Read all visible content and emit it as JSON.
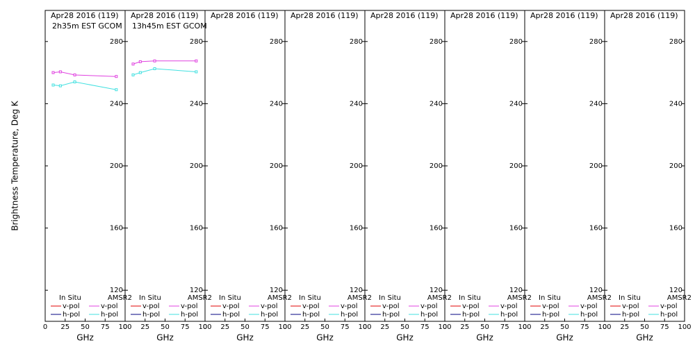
{
  "chart_data": [
    {
      "type": "line",
      "title": "Apr28 2016 (119)",
      "subtitle": "2h35m EST GCOM",
      "ylabel": "Brightness Temperature, Deg K",
      "xlabel": "GHz",
      "xlim": [
        0,
        100
      ],
      "xticks": [
        0,
        25,
        50,
        75,
        100
      ],
      "ylim": [
        100,
        300
      ],
      "yticks": [
        120,
        160,
        200,
        240,
        280
      ],
      "x": [
        10,
        19,
        37,
        89
      ],
      "groups": [
        {
          "name": "In Situ",
          "series": [
            {
              "name": "v-pol",
              "color": "#e00000",
              "values": [
                null,
                null,
                null,
                null
              ]
            },
            {
              "name": "h-pol",
              "color": "#000080",
              "values": [
                null,
                null,
                null,
                null
              ]
            }
          ]
        },
        {
          "name": "AMSR2",
          "series": [
            {
              "name": "v-pol",
              "color": "#e040e0",
              "values": [
                260,
                260.5,
                258.5,
                257.5
              ]
            },
            {
              "name": "h-pol",
              "color": "#40e0e0",
              "values": [
                252,
                251.5,
                254,
                249
              ]
            }
          ]
        }
      ]
    },
    {
      "type": "line",
      "title": "Apr28 2016 (119)",
      "subtitle": "13h45m EST GCOM",
      "xlabel": "GHz",
      "xlim": [
        0,
        100
      ],
      "xticks": [
        0,
        25,
        50,
        75,
        100
      ],
      "ylim": [
        100,
        300
      ],
      "yticks": [
        120,
        160,
        200,
        240,
        280
      ],
      "x": [
        10,
        19,
        37,
        89
      ],
      "groups": [
        {
          "name": "In Situ",
          "series": [
            {
              "name": "v-pol",
              "color": "#e00000",
              "values": [
                null,
                null,
                null,
                null
              ]
            },
            {
              "name": "h-pol",
              "color": "#000080",
              "values": [
                null,
                null,
                null,
                null
              ]
            }
          ]
        },
        {
          "name": "AMSR2",
          "series": [
            {
              "name": "v-pol",
              "color": "#e040e0",
              "values": [
                265.5,
                267,
                267.5,
                267.5
              ]
            },
            {
              "name": "h-pol",
              "color": "#40e0e0",
              "values": [
                258.5,
                260,
                262.5,
                260.5
              ]
            }
          ]
        }
      ]
    },
    {
      "type": "line",
      "title": "Apr28 2016 (119)",
      "xlabel": "GHz",
      "xlim": [
        0,
        100
      ],
      "xticks": [
        0,
        25,
        50,
        75,
        100
      ],
      "ylim": [
        100,
        300
      ],
      "yticks": [
        120,
        160,
        200,
        240,
        280
      ],
      "x": [],
      "groups": [
        {
          "name": "In Situ",
          "series": [
            {
              "name": "v-pol",
              "color": "#e00000",
              "values": []
            },
            {
              "name": "h-pol",
              "color": "#000080",
              "values": []
            }
          ]
        },
        {
          "name": "AMSR2",
          "series": [
            {
              "name": "v-pol",
              "color": "#e040e0",
              "values": []
            },
            {
              "name": "h-pol",
              "color": "#40e0e0",
              "values": []
            }
          ]
        }
      ]
    },
    {
      "type": "line",
      "title": "Apr28 2016 (119)",
      "xlabel": "GHz",
      "xlim": [
        0,
        100
      ],
      "xticks": [
        0,
        25,
        50,
        75,
        100
      ],
      "ylim": [
        100,
        300
      ],
      "yticks": [
        120,
        160,
        200,
        240,
        280
      ],
      "x": [],
      "groups": [
        {
          "name": "In Situ",
          "series": [
            {
              "name": "v-pol",
              "color": "#e00000",
              "values": []
            },
            {
              "name": "h-pol",
              "color": "#000080",
              "values": []
            }
          ]
        },
        {
          "name": "AMSR2",
          "series": [
            {
              "name": "v-pol",
              "color": "#e040e0",
              "values": []
            },
            {
              "name": "h-pol",
              "color": "#40e0e0",
              "values": []
            }
          ]
        }
      ]
    },
    {
      "type": "line",
      "title": "Apr28 2016 (119)",
      "xlabel": "GHz",
      "xlim": [
        0,
        100
      ],
      "xticks": [
        0,
        25,
        50,
        75,
        100
      ],
      "ylim": [
        100,
        300
      ],
      "yticks": [
        120,
        160,
        200,
        240,
        280
      ],
      "x": [],
      "groups": [
        {
          "name": "In Situ",
          "series": [
            {
              "name": "v-pol",
              "color": "#e00000",
              "values": []
            },
            {
              "name": "h-pol",
              "color": "#000080",
              "values": []
            }
          ]
        },
        {
          "name": "AMSR2",
          "series": [
            {
              "name": "v-pol",
              "color": "#e040e0",
              "values": []
            },
            {
              "name": "h-pol",
              "color": "#40e0e0",
              "values": []
            }
          ]
        }
      ]
    },
    {
      "type": "line",
      "title": "Apr28 2016 (119)",
      "xlabel": "GHz",
      "xlim": [
        0,
        100
      ],
      "xticks": [
        0,
        25,
        50,
        75,
        100
      ],
      "ylim": [
        100,
        300
      ],
      "yticks": [
        120,
        160,
        200,
        240,
        280
      ],
      "x": [],
      "groups": [
        {
          "name": "In Situ",
          "series": [
            {
              "name": "v-pol",
              "color": "#e00000",
              "values": []
            },
            {
              "name": "h-pol",
              "color": "#000080",
              "values": []
            }
          ]
        },
        {
          "name": "AMSR2",
          "series": [
            {
              "name": "v-pol",
              "color": "#e040e0",
              "values": []
            },
            {
              "name": "h-pol",
              "color": "#40e0e0",
              "values": []
            }
          ]
        }
      ]
    },
    {
      "type": "line",
      "title": "Apr28 2016 (119)",
      "xlabel": "GHz",
      "xlim": [
        0,
        100
      ],
      "xticks": [
        0,
        25,
        50,
        75,
        100
      ],
      "ylim": [
        100,
        300
      ],
      "yticks": [
        120,
        160,
        200,
        240,
        280
      ],
      "x": [],
      "groups": [
        {
          "name": "In Situ",
          "series": [
            {
              "name": "v-pol",
              "color": "#e00000",
              "values": []
            },
            {
              "name": "h-pol",
              "color": "#000080",
              "values": []
            }
          ]
        },
        {
          "name": "AMSR2",
          "series": [
            {
              "name": "v-pol",
              "color": "#e040e0",
              "values": []
            },
            {
              "name": "h-pol",
              "color": "#40e0e0",
              "values": []
            }
          ]
        }
      ]
    },
    {
      "type": "line",
      "title": "Apr28 2016 (119)",
      "xlabel": "GHz",
      "xlim": [
        0,
        100
      ],
      "xticks": [
        0,
        25,
        50,
        75,
        100
      ],
      "ylim": [
        100,
        300
      ],
      "yticks": [
        120,
        160,
        200,
        240,
        280
      ],
      "x": [],
      "groups": [
        {
          "name": "In Situ",
          "series": [
            {
              "name": "v-pol",
              "color": "#e00000",
              "values": []
            },
            {
              "name": "h-pol",
              "color": "#000080",
              "values": []
            }
          ]
        },
        {
          "name": "AMSR2",
          "series": [
            {
              "name": "v-pol",
              "color": "#e040e0",
              "values": []
            },
            {
              "name": "h-pol",
              "color": "#40e0e0",
              "values": []
            }
          ]
        }
      ]
    }
  ]
}
